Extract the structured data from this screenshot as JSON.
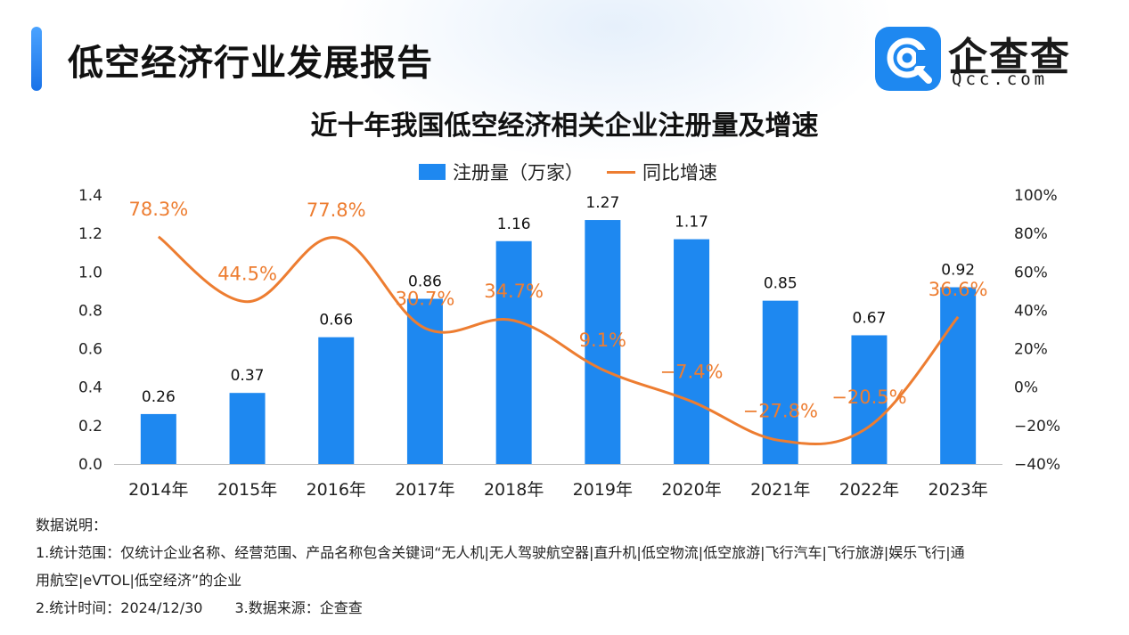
{
  "header": {
    "report_title": "低空经济行业发展报告",
    "logo_text": "企查查",
    "logo_domain": "Qcc.com"
  },
  "colors": {
    "bar": "#1e88f0",
    "line": "#ed7d31",
    "accent": "#1a73e8",
    "brand_blue": "#1e88f0"
  },
  "chart_data": {
    "type": "bar",
    "title": "近十年我国低空经济相关企业注册量及增速",
    "categories": [
      "2014年",
      "2015年",
      "2016年",
      "2017年",
      "2018年",
      "2019年",
      "2020年",
      "2021年",
      "2022年",
      "2023年"
    ],
    "series": [
      {
        "name": "注册量（万家）",
        "type": "bar",
        "axis": "left",
        "values": [
          0.26,
          0.37,
          0.66,
          0.86,
          1.16,
          1.27,
          1.17,
          0.85,
          0.67,
          0.92
        ],
        "labels": [
          "0.26",
          "0.37",
          "0.66",
          "0.86",
          "1.16",
          "1.27",
          "1.17",
          "0.85",
          "0.67",
          "0.92"
        ]
      },
      {
        "name": "同比增速",
        "type": "line",
        "axis": "right",
        "values": [
          78.3,
          44.5,
          77.8,
          30.7,
          34.7,
          9.1,
          -7.4,
          -27.8,
          -20.5,
          36.6
        ],
        "labels": [
          "78.3%",
          "44.5%",
          "77.8%",
          "30.7%",
          "34.7%",
          "9.1%",
          "−7.4%",
          "−27.8%",
          "−20.5%",
          "36.6%"
        ]
      }
    ],
    "y_left": {
      "min": 0,
      "max": 1.4,
      "ticks": [
        "0.0",
        "0.2",
        "0.4",
        "0.6",
        "0.8",
        "1.0",
        "1.2",
        "1.4"
      ]
    },
    "y_right": {
      "min": -40,
      "max": 100,
      "ticks": [
        "−40%",
        "−20%",
        "0%",
        "20%",
        "40%",
        "60%",
        "80%",
        "100%"
      ]
    },
    "grid": false,
    "legend_position": "top-center"
  },
  "notes": {
    "heading": "数据说明：",
    "item1_line1": "1.统计范围：仅统计企业名称、经营范围、产品名称包含关键词“无人机|无人驾驶航空器|直升机|低空物流|低空旅游|飞行汽车|飞行旅游|娱乐飞行|通",
    "item1_line2": "用航空|eVTOL|低空经济”的企业",
    "item2": "2.统计时间：2024/12/30",
    "item3": "3.数据来源：企查查"
  }
}
